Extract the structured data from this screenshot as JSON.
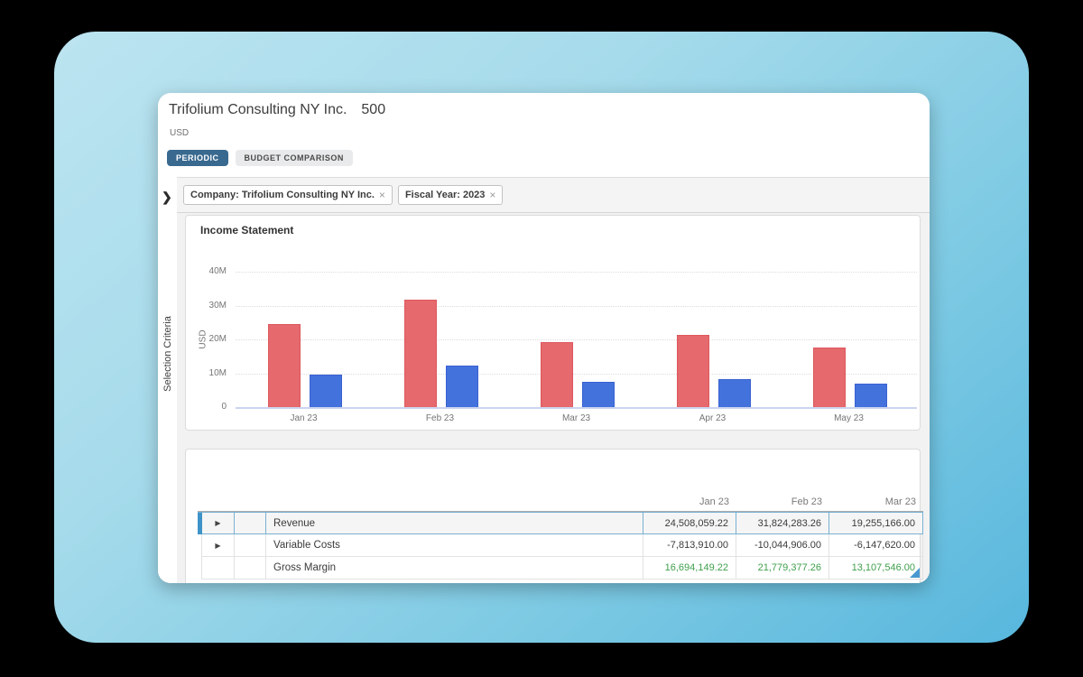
{
  "card": {
    "title": "Trifolium Consulting NY Inc.",
    "title_code": "500",
    "currency": "USD",
    "tabs": [
      {
        "label": "PERIODIC",
        "active": true
      },
      {
        "label": "BUDGET COMPARISON",
        "active": false
      }
    ],
    "filters": [
      {
        "label": "Company: Trifolium Consulting NY Inc.",
        "close": "×"
      },
      {
        "label": "Fiscal Year: 2023",
        "close": "×"
      }
    ],
    "sidebar": {
      "label": "Selection Criteria",
      "chevron": "❯"
    }
  },
  "chart_data": {
    "type": "bar",
    "title": "Income Statement",
    "ylabel": "USD",
    "categories": [
      "Jan 23",
      "Feb 23",
      "Mar 23",
      "Apr 23",
      "May 23"
    ],
    "series": [
      {
        "name": "red",
        "color": "#e5696d",
        "border_color": "#dd585e",
        "values": [
          24.5,
          31.8,
          19.3,
          21.3,
          17.6
        ]
      },
      {
        "name": "blue",
        "color": "#4472dc",
        "border_color": "#3a62d2",
        "values": [
          9.5,
          12.2,
          7.5,
          8.3,
          6.9
        ]
      }
    ],
    "unit": "M",
    "ylim": [
      0,
      40
    ],
    "yticks": [
      "40M",
      "30M",
      "20M",
      "10M",
      "0"
    ],
    "grid": true,
    "legend_position": "none"
  },
  "table": {
    "headers": [
      "Jan 23",
      "Feb 23",
      "Mar 23"
    ],
    "rows": [
      {
        "expandable": true,
        "name": "Revenue",
        "values": [
          "24,508,059.22",
          "31,824,283.26",
          "19,255,166.00"
        ],
        "selected": true,
        "green": false
      },
      {
        "expandable": true,
        "name": "Variable Costs",
        "values": [
          "-7,813,910.00",
          "-10,044,906.00",
          "-6,147,620.00"
        ],
        "selected": false,
        "green": false
      },
      {
        "expandable": false,
        "name": "Gross Margin",
        "values": [
          "16,694,149.22",
          "21,779,377.26",
          "13,107,546.00"
        ],
        "selected": false,
        "green": true
      }
    ],
    "colors": {
      "positive_highlight": "#3fa04c",
      "selected_accent": "#3e93c9",
      "bar_red": "#e5696d",
      "bar_blue": "#4472dc"
    }
  }
}
